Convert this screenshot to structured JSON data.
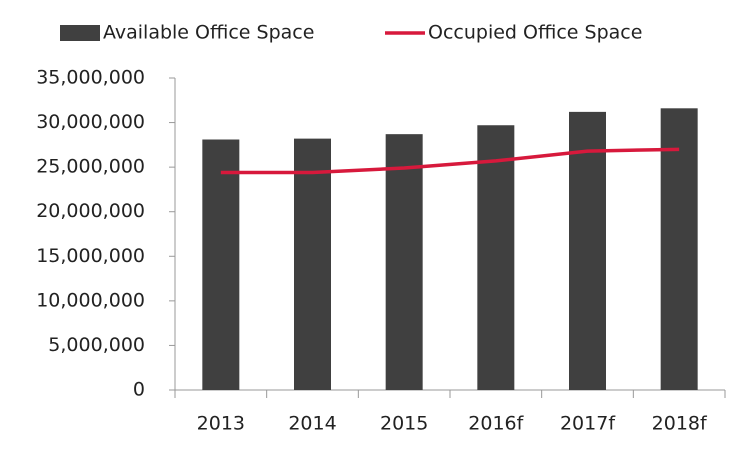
{
  "chart_data": {
    "type": "bar",
    "categories": [
      "2013",
      "2014",
      "2015",
      "2016f",
      "2017f",
      "2018f"
    ],
    "series": [
      {
        "name": "Available Office Space",
        "color": "#404040",
        "type": "bar",
        "values": [
          28100000,
          28200000,
          28700000,
          29700000,
          31200000,
          31600000
        ]
      },
      {
        "name": "Occupied Office Space",
        "color": "#d7193c",
        "type": "line",
        "values": [
          24400000,
          24400000,
          24900000,
          25700000,
          26800000,
          27000000
        ]
      }
    ],
    "ylim": [
      0,
      35000000
    ],
    "yticks": [
      0,
      {
        "value": 5000000,
        "label": "5,000,000"
      },
      {
        "value": 10000000,
        "label": "10,000,000"
      },
      {
        "value": 15000000,
        "label": "15,000,000"
      },
      {
        "value": 20000000,
        "label": "20,000,000"
      },
      {
        "value": 25000000,
        "label": "25,000,000"
      },
      {
        "value": 30000000,
        "label": "30,000,000"
      },
      {
        "value": 35000000,
        "label": "35,000,000"
      }
    ],
    "grid": false,
    "legend": "top"
  }
}
